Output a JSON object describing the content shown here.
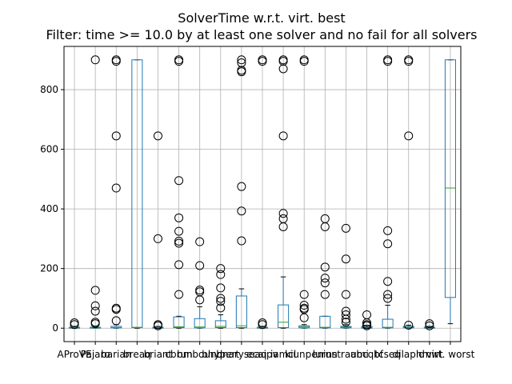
{
  "chart_data": {
    "type": "box",
    "title": "SolverTime w.r.t. virt. best",
    "subtitle": "Filter: time >= 10.0 by at least one solver and no fail for all solvers",
    "xlabel": "",
    "ylabel": "",
    "ylim": [
      -45,
      945
    ],
    "yticks": [
      0,
      200,
      400,
      600,
      800
    ],
    "grid": true,
    "categories": [
      "AProVE",
      "Pajaro",
      "barian",
      "breaq",
      "briant",
      "cbrun",
      "bmbound",
      "bhypert",
      "bnaryseaq",
      "ecaipv",
      "iamcl",
      "kiunpen",
      "lurun",
      "instraumi",
      "abcqbf",
      "tcseq",
      "dilapid",
      "hmwt",
      "virt. worst"
    ],
    "colors": {
      "box": "#1f77b4",
      "median": "#2ca02c",
      "outlier": "#000000",
      "grid": "#b0b0b0"
    },
    "boxes": [
      {
        "q1": 0,
        "median": 1,
        "q3": 3,
        "whisker_low": 0,
        "whisker_high": 6,
        "outliers": [
          12,
          18
        ]
      },
      {
        "q1": 0,
        "median": 1,
        "q3": 3,
        "whisker_low": 0,
        "whisker_high": 6,
        "outliers": [
          900,
          127,
          75,
          57,
          20,
          15
        ]
      },
      {
        "q1": 1,
        "median": 2,
        "q3": 6,
        "whisker_low": 0,
        "whisker_high": 12,
        "outliers": [
          900,
          895,
          645,
          470,
          67,
          63,
          25
        ]
      },
      {
        "q1": 2,
        "median": 3,
        "q3": 900,
        "whisker_low": 0,
        "whisker_high": 900,
        "outliers": []
      },
      {
        "q1": 0,
        "median": 1,
        "q3": 3,
        "whisker_low": 0,
        "whisker_high": 6,
        "outliers": [
          645,
          300,
          12,
          8
        ]
      },
      {
        "q1": 2,
        "median": 5,
        "q3": 38,
        "whisker_low": 0,
        "whisker_high": 40,
        "outliers": [
          900,
          895,
          495,
          370,
          325,
          292,
          285,
          213,
          113
        ]
      },
      {
        "q1": 1,
        "median": 4,
        "q3": 32,
        "whisker_low": 0,
        "whisker_high": 72,
        "outliers": [
          290,
          210,
          128,
          122,
          95
        ]
      },
      {
        "q1": 2,
        "median": 6,
        "q3": 25,
        "whisker_low": 0,
        "whisker_high": 45,
        "outliers": [
          200,
          180,
          135,
          100,
          90,
          68
        ]
      },
      {
        "q1": 2,
        "median": 8,
        "q3": 108,
        "whisker_low": 0,
        "whisker_high": 132,
        "outliers": [
          900,
          890,
          865,
          860,
          475,
          393,
          293
        ]
      },
      {
        "q1": 0,
        "median": 1,
        "q3": 3,
        "whisker_low": 0,
        "whisker_high": 6,
        "outliers": [
          900,
          895,
          18,
          12
        ]
      },
      {
        "q1": 2,
        "median": 20,
        "q3": 78,
        "whisker_low": 0,
        "whisker_high": 172,
        "outliers": [
          900,
          895,
          870,
          645,
          385,
          367,
          340
        ]
      },
      {
        "q1": 1,
        "median": 4,
        "q3": 8,
        "whisker_low": 0,
        "whisker_high": 12,
        "outliers": [
          900,
          895,
          113,
          77,
          67,
          63,
          35
        ]
      },
      {
        "q1": 1,
        "median": 3,
        "q3": 40,
        "whisker_low": 0,
        "whisker_high": 40,
        "outliers": [
          367,
          340,
          205,
          168,
          152,
          113
        ]
      },
      {
        "q1": 1,
        "median": 3,
        "q3": 6,
        "whisker_low": 0,
        "whisker_high": 12,
        "outliers": [
          335,
          232,
          113,
          57,
          45,
          30,
          20
        ]
      },
      {
        "q1": 0,
        "median": 2,
        "q3": 6,
        "whisker_low": 0,
        "whisker_high": 10,
        "outliers": [
          45,
          18,
          12,
          8
        ]
      },
      {
        "q1": 1,
        "median": 3,
        "q3": 30,
        "whisker_low": 0,
        "whisker_high": 77,
        "outliers": [
          900,
          895,
          327,
          283,
          157,
          113,
          100
        ]
      },
      {
        "q1": 1,
        "median": 3,
        "q3": 6,
        "whisker_low": 0,
        "whisker_high": 10,
        "outliers": [
          900,
          895,
          645,
          10
        ]
      },
      {
        "q1": 0,
        "median": 1,
        "q3": 3,
        "whisker_low": 0,
        "whisker_high": 6,
        "outliers": [
          15,
          8
        ]
      },
      {
        "q1": 103,
        "median": 470,
        "q3": 900,
        "whisker_low": 15,
        "whisker_high": 900,
        "outliers": []
      }
    ]
  }
}
